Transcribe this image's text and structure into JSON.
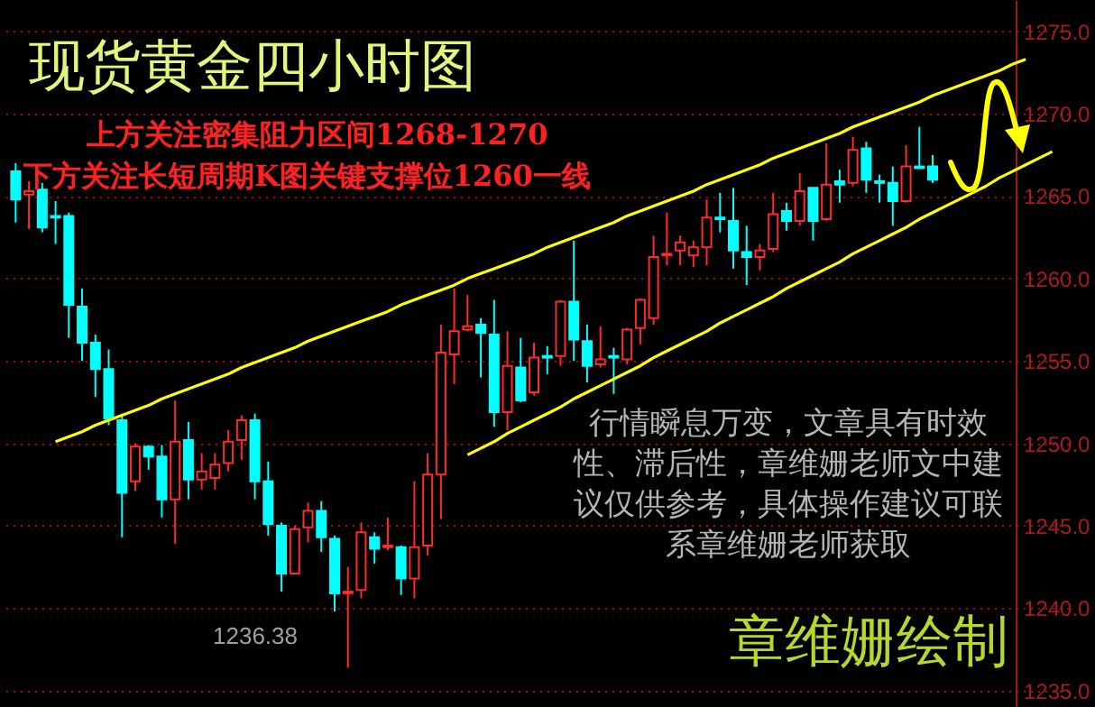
{
  "chart_data": {
    "type": "candlestick",
    "title": "现货黄金四小时图",
    "annotations": [
      "上方关注密集阻力区间1268-1270",
      "下方关注长短周期K图关键支撑位1260一线",
      "行情瞬息万变，文章具有时效性、滞后性，章维姗老师文中建议仅供参考，具体操作建议可联系章维姗老师获取",
      "1236.38",
      "章维姗绘制"
    ],
    "categories": [
      null,
      null,
      null,
      null,
      null,
      null,
      null,
      null,
      null,
      null,
      null,
      null,
      null,
      null,
      null,
      null,
      null,
      null,
      null,
      null,
      null,
      null,
      null,
      null,
      null,
      null,
      null,
      null,
      null,
      null,
      null,
      null,
      null,
      null,
      null,
      null,
      null,
      null,
      null,
      null,
      null,
      null,
      null,
      null,
      null,
      null,
      null,
      null,
      null,
      null,
      null,
      null,
      null,
      null,
      null,
      null,
      null,
      null,
      null,
      null,
      null,
      null,
      null,
      null,
      null,
      null,
      null,
      null,
      null,
      null,
      null,
      null,
      null,
      null,
      null,
      null,
      null,
      null,
      null
    ],
    "ohlc": [
      [
        1266.5,
        1267.0,
        1263.4,
        1264.8
      ],
      [
        1265.1,
        1265.9,
        1263.0,
        1265.3
      ],
      [
        1265.4,
        1265.8,
        1262.8,
        1263.1
      ],
      [
        1263.8,
        1264.7,
        1262.1,
        1263.7
      ],
      [
        1263.8,
        1264.0,
        1256.4,
        1258.4
      ],
      [
        1258.3,
        1259.4,
        1255.0,
        1256.1
      ],
      [
        1256.1,
        1256.6,
        1252.8,
        1254.5
      ],
      [
        1254.5,
        1255.7,
        1251.1,
        1251.5
      ],
      [
        1251.4,
        1251.8,
        1244.3,
        1247.0
      ],
      [
        1247.7,
        1250.0,
        1247.1,
        1249.8
      ],
      [
        1249.8,
        1249.9,
        1248.4,
        1249.2
      ],
      [
        1249.2,
        1249.9,
        1245.5,
        1246.6
      ],
      [
        1246.6,
        1252.6,
        1243.9,
        1250.1
      ],
      [
        1250.2,
        1251.3,
        1246.6,
        1247.8
      ],
      [
        1247.8,
        1249.4,
        1247.2,
        1248.3
      ],
      [
        1247.9,
        1249.4,
        1247.2,
        1248.7
      ],
      [
        1248.8,
        1250.8,
        1248.3,
        1250.1
      ],
      [
        1250.2,
        1251.7,
        1249.0,
        1251.4
      ],
      [
        1251.4,
        1251.8,
        1246.6,
        1247.7
      ],
      [
        1247.7,
        1248.9,
        1244.4,
        1245.1
      ],
      [
        1245.0,
        1245.2,
        1241.0,
        1242.1
      ],
      [
        1242.1,
        1245.0,
        1242.1,
        1244.8
      ],
      [
        1244.9,
        1246.4,
        1244.0,
        1245.9
      ],
      [
        1245.9,
        1246.5,
        1243.4,
        1244.3
      ],
      [
        1244.2,
        1244.4,
        1239.8,
        1240.9
      ],
      [
        1240.9,
        1242.5,
        1236.38,
        1241.0
      ],
      [
        1241.1,
        1245.2,
        1240.6,
        1244.6
      ],
      [
        1244.3,
        1244.6,
        1242.7,
        1243.6
      ],
      [
        1243.7,
        1245.5,
        1243.5,
        1243.8
      ],
      [
        1243.7,
        1243.8,
        1240.8,
        1241.8
      ],
      [
        1241.8,
        1247.7,
        1240.6,
        1243.7
      ],
      [
        1243.8,
        1249.4,
        1243.2,
        1248.1
      ],
      [
        1248.1,
        1257.2,
        1245.4,
        1255.5
      ],
      [
        1255.4,
        1259.4,
        1253.6,
        1256.8
      ],
      [
        1256.9,
        1259.0,
        1256.8,
        1257.1
      ],
      [
        1257.2,
        1257.6,
        1254.0,
        1256.7
      ],
      [
        1256.6,
        1258.7,
        1251.0,
        1251.9
      ],
      [
        1251.9,
        1256.8,
        1250.8,
        1254.7
      ],
      [
        1254.6,
        1256.4,
        1252.5,
        1252.6
      ],
      [
        1253.1,
        1256.1,
        1252.9,
        1255.2
      ],
      [
        1255.3,
        1255.9,
        1254.2,
        1255.2
      ],
      [
        1255.3,
        1258.7,
        1254.7,
        1258.6
      ],
      [
        1258.6,
        1262.3,
        1255.0,
        1256.3
      ],
      [
        1256.2,
        1257.2,
        1253.7,
        1254.7
      ],
      [
        1254.8,
        1257.1,
        1254.6,
        1255.1
      ],
      [
        1255.3,
        1255.8,
        1253.0,
        1255.2
      ],
      [
        1255.1,
        1257.0,
        1254.8,
        1256.9
      ],
      [
        1257.0,
        1258.8,
        1256.0,
        1258.7
      ],
      [
        1257.6,
        1262.6,
        1257.2,
        1261.3
      ],
      [
        1261.4,
        1264.0,
        1260.8,
        1261.5
      ],
      [
        1261.7,
        1262.6,
        1260.8,
        1262.2
      ],
      [
        1261.4,
        1262.3,
        1260.7,
        1261.9
      ],
      [
        1261.9,
        1264.8,
        1260.8,
        1263.7
      ],
      [
        1263.7,
        1265.2,
        1262.8,
        1263.6
      ],
      [
        1263.5,
        1265.5,
        1260.6,
        1261.7
      ],
      [
        1261.6,
        1263.2,
        1259.6,
        1261.3
      ],
      [
        1261.3,
        1262.1,
        1260.5,
        1261.7
      ],
      [
        1261.8,
        1265.2,
        1261.6,
        1263.9
      ],
      [
        1264.1,
        1264.6,
        1262.9,
        1263.5
      ],
      [
        1263.5,
        1266.4,
        1263.2,
        1265.3
      ],
      [
        1265.5,
        1265.5,
        1262.3,
        1263.5
      ],
      [
        1263.6,
        1268.2,
        1263.5,
        1265.7
      ],
      [
        1265.9,
        1266.6,
        1264.6,
        1265.7
      ],
      [
        1265.8,
        1268.6,
        1265.6,
        1267.8
      ],
      [
        1267.9,
        1268.3,
        1265.2,
        1266.0
      ],
      [
        1265.9,
        1266.3,
        1264.6,
        1265.8
      ],
      [
        1265.8,
        1266.8,
        1263.2,
        1264.7
      ],
      [
        1264.7,
        1268.1,
        1264.6,
        1266.8
      ],
      [
        1266.8,
        1269.2,
        1266.7,
        1266.7
      ],
      [
        1266.8,
        1267.5,
        1265.8,
        1266.0
      ],
      null,
      null,
      null,
      null,
      null,
      null,
      null,
      null,
      null
    ],
    "series": [
      {
        "type": "line",
        "color": "#ffff00",
        "values": [
          null,
          null,
          null,
          1250.1,
          1250.4,
          1250.7,
          1251.1,
          1251.4,
          1251.7,
          1252.0,
          1252.3,
          1252.7,
          1253.0,
          1253.3,
          1253.6,
          1253.9,
          1254.2,
          1254.6,
          1254.9,
          1255.2,
          1255.5,
          1255.8,
          1256.2,
          1256.5,
          1256.8,
          1257.1,
          1257.4,
          1257.7,
          1258.0,
          1258.4,
          1258.7,
          1259.0,
          1259.3,
          1259.6,
          1260.0,
          1260.3,
          1260.6,
          1260.9,
          1261.2,
          1261.5,
          1261.9,
          1262.2,
          1262.5,
          1262.8,
          1263.1,
          1263.4,
          1263.8,
          1264.1,
          1264.4,
          1264.7,
          1265.0,
          1265.3,
          1265.7,
          1266.0,
          1266.3,
          1266.6,
          1266.9,
          1267.3,
          1267.6,
          1267.9,
          1268.2,
          1268.5,
          1268.8,
          1269.2,
          1269.5,
          1269.8,
          1270.1,
          1270.4,
          1270.7,
          1271.1,
          1271.4,
          1271.7,
          1272.0,
          1272.3,
          1272.6,
          1273.0,
          1273.3,
          null,
          null
        ]
      },
      {
        "type": "line",
        "color": "#ffff00",
        "values": [
          null,
          null,
          null,
          null,
          null,
          null,
          null,
          null,
          null,
          null,
          null,
          null,
          null,
          null,
          null,
          null,
          null,
          null,
          null,
          null,
          null,
          null,
          null,
          null,
          null,
          null,
          null,
          null,
          null,
          null,
          null,
          null,
          null,
          null,
          1249.3,
          1249.7,
          1250.1,
          1250.6,
          1251.0,
          1251.4,
          1251.8,
          1252.2,
          1252.7,
          1253.1,
          1253.5,
          1253.9,
          1254.3,
          1254.7,
          1255.2,
          1255.6,
          1256.0,
          1256.4,
          1256.8,
          1257.3,
          1257.7,
          1258.1,
          1258.5,
          1258.9,
          1259.4,
          1259.8,
          1260.2,
          1260.6,
          1261.0,
          1261.5,
          1261.9,
          1262.3,
          1262.7,
          1263.1,
          1263.6,
          1264.0,
          1264.4,
          1264.8,
          1265.2,
          1265.6,
          1266.1,
          1266.5,
          1266.9,
          1267.3,
          1267.7
        ]
      }
    ],
    "ylim": [
      1234.0,
      1276.9
    ],
    "yticks": [
      {
        "value": 1235,
        "label": "1235.0"
      },
      {
        "value": 1240,
        "label": "1240.0"
      },
      {
        "value": 1245,
        "label": "1245.0"
      },
      {
        "value": 1250,
        "label": "1250.0"
      },
      {
        "value": 1255,
        "label": "1255.0"
      },
      {
        "value": 1260,
        "label": "1260.0"
      },
      {
        "value": 1265,
        "label": "1265.0"
      },
      {
        "value": 1270,
        "label": "1270.0"
      },
      {
        "value": 1275,
        "label": "1275.0"
      }
    ],
    "grid": "y"
  }
}
